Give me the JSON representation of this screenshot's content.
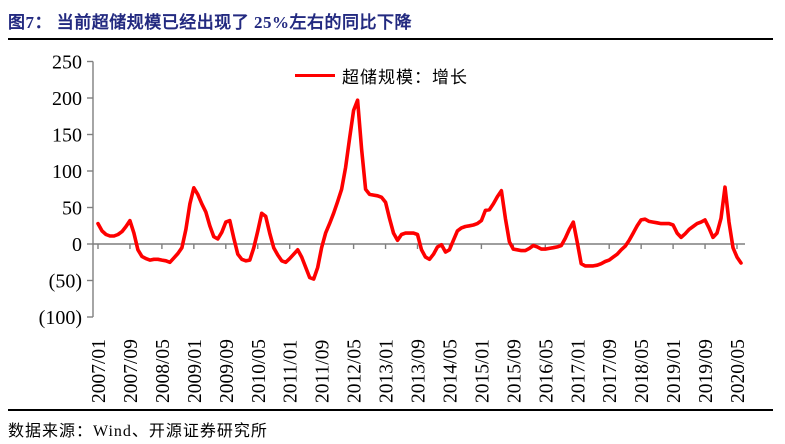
{
  "title": {
    "text": "图7： 当前超储规模已经出现了 25%左右的同比下降"
  },
  "legend": {
    "label": "超储规模：增长"
  },
  "footer": {
    "text": "数据来源：Wind、开源证券研究所"
  },
  "colors": {
    "title": "#232a80",
    "series": "#fe0000",
    "axis": "#7f7f7f",
    "tick_text": "#000000",
    "rule": "#000000"
  },
  "chart_data": {
    "type": "line",
    "series_name": "超储规模：增长",
    "x_start": "2007/01",
    "frequency": "monthly",
    "ylim": [
      -100,
      250
    ],
    "grid": false,
    "legend_position": "top-center",
    "y_ticks": [
      250,
      200,
      150,
      100,
      50,
      0,
      -50,
      -100
    ],
    "y_tick_labels": [
      "250",
      "200",
      "150",
      "100",
      "50",
      "0",
      "(50)",
      "(100)"
    ],
    "x_tick_labels": [
      "2007/01",
      "2007/09",
      "2008/05",
      "2009/01",
      "2009/09",
      "2010/05",
      "2011/01",
      "2011/09",
      "2012/05",
      "2013/01",
      "2013/09",
      "2014/05",
      "2015/01",
      "2015/09",
      "2016/05",
      "2017/01",
      "2017/09",
      "2018/05",
      "2019/01",
      "2019/09",
      "2020/05"
    ],
    "x_tick_every_n_months": 8,
    "values": [
      28,
      18,
      13,
      11,
      11,
      13,
      17,
      24,
      32,
      15,
      -8,
      -17,
      -20,
      -22,
      -21,
      -21,
      -22,
      -23,
      -25,
      -19,
      -13,
      -5,
      20,
      55,
      77,
      68,
      55,
      44,
      25,
      10,
      7,
      16,
      30,
      32,
      8,
      -14,
      -21,
      -23,
      -22,
      -5,
      18,
      42,
      38,
      15,
      -5,
      -15,
      -23,
      -25,
      -20,
      -14,
      -8,
      -18,
      -32,
      -46,
      -48,
      -32,
      -5,
      15,
      28,
      42,
      58,
      75,
      105,
      145,
      183,
      197,
      130,
      75,
      68,
      67,
      66,
      64,
      57,
      35,
      15,
      5,
      13,
      15,
      15,
      15,
      13,
      -8,
      -18,
      -21,
      -14,
      -4,
      -1,
      -11,
      -8,
      5,
      18,
      22,
      24,
      25,
      26,
      28,
      32,
      46,
      47,
      55,
      65,
      73,
      35,
      3,
      -7,
      -8,
      -9,
      -9,
      -6,
      -2,
      -4,
      -7,
      -7,
      -6,
      -5,
      -4,
      -2,
      8,
      20,
      30,
      2,
      -27,
      -30,
      -30,
      -30,
      -29,
      -27,
      -24,
      -22,
      -18,
      -14,
      -8,
      -3,
      5,
      15,
      25,
      33,
      34,
      31,
      30,
      29,
      28,
      28,
      28,
      26,
      15,
      9,
      14,
      20,
      24,
      28,
      30,
      33,
      22,
      9,
      15,
      35,
      78,
      30,
      -5,
      -18,
      -26
    ]
  }
}
